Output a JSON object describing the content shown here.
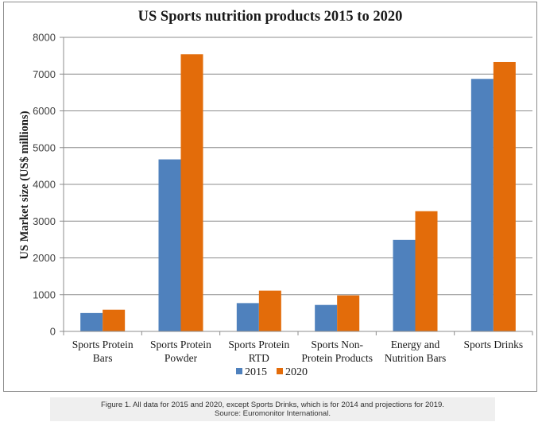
{
  "chart_data": {
    "type": "bar",
    "title": "US Sports nutrition products 2015 to 2020",
    "xlabel": "",
    "ylabel": "US Market size (US$ millions)",
    "ylim": [
      0,
      8000
    ],
    "yticks": [
      0,
      1000,
      2000,
      3000,
      4000,
      5000,
      6000,
      7000,
      8000
    ],
    "ytick_labels": [
      "0",
      "1000",
      "2000",
      "3000",
      "4000",
      "5000",
      "6000",
      "7000",
      "8000"
    ],
    "grid": true,
    "legend_position": "bottom",
    "categories": [
      [
        "Sports Protein",
        "Bars"
      ],
      [
        "Sports Protein",
        "Powder"
      ],
      [
        "Sports Protein",
        "RTD"
      ],
      [
        "Sports Non-",
        "Protein Products"
      ],
      [
        "Energy and",
        "Nutrition Bars"
      ],
      [
        "Sports Drinks"
      ]
    ],
    "series": [
      {
        "name": "2015",
        "color": "#4f81bd",
        "values": [
          500,
          4680,
          770,
          720,
          2490,
          6870
        ]
      },
      {
        "name": "2020",
        "color": "#e36c0a",
        "values": [
          590,
          7540,
          1110,
          980,
          3270,
          7330
        ]
      }
    ]
  },
  "caption": {
    "line1": "Figure 1. All data for 2015 and 2020, except Sports Drinks, which is for 2014 and projections for 2019.",
    "line2": "Source: Euromonitor International."
  }
}
